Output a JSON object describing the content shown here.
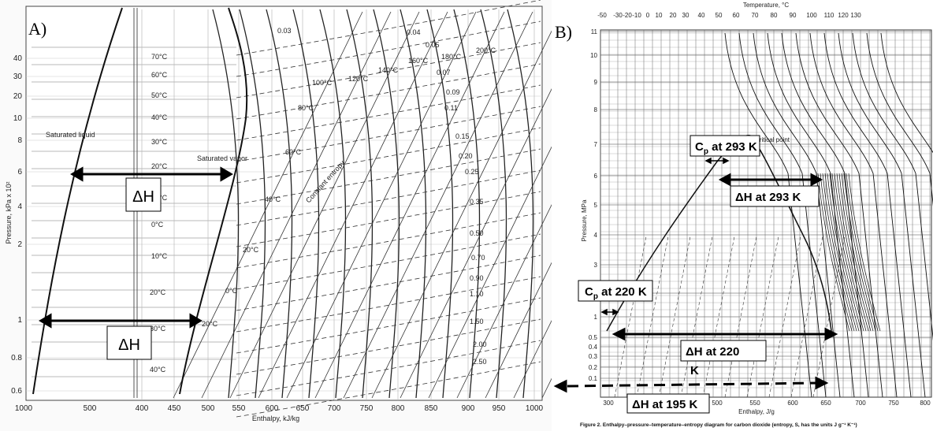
{
  "panelA": {
    "label": "A)",
    "xlabel": "Enthalpy, kJ/kg",
    "ylabel": "Pressure, kPa x 10²",
    "x_ticks": [
      "1000",
      "500",
      "400",
      "450",
      "500",
      "550",
      "600",
      "650",
      "700",
      "750",
      "800",
      "850",
      "900",
      "950",
      "1000"
    ],
    "y_ticks": [
      "40",
      "30",
      "20",
      "10",
      "8",
      "6",
      "4",
      "2",
      "1",
      "0.8",
      "0.6"
    ],
    "sat_liquid_label": "Saturated liquid",
    "sat_vapor_label": "Saturated vapor",
    "entropy_label": "Constant entropy",
    "liquid_temps": [
      "70°C",
      "60°C",
      "50°C",
      "40°C",
      "30°C",
      "20°C",
      "10°C",
      "0°C",
      "10°C",
      "20°C",
      "30°C",
      "40°C"
    ],
    "vapor_temps": [
      "200°C",
      "180°C",
      "160°C",
      "140°C",
      "120°C",
      "100°C",
      "80°C",
      "60°C",
      "40°C",
      "20°C",
      "0°C",
      "20°C"
    ],
    "density_labels": [
      "0.03",
      "0.04",
      "0.05",
      "0.07",
      "0.09",
      "0.11",
      "0.15",
      "0.20",
      "0.25",
      "0.35",
      "0.50",
      "0.70",
      "0.90",
      "1.10",
      "1.50",
      "2.00",
      "2.50"
    ],
    "annotation_upper": "ΔH",
    "annotation_lower": "ΔH"
  },
  "panelB": {
    "label": "B)",
    "top_axis_label": "Temperature, °C",
    "xlabel": "Enthalpy, J/g",
    "ylabel": "Pressure, MPa",
    "top_ticks_1": [
      "-50",
      "-30",
      "-20",
      "-10",
      "0",
      "10",
      "20",
      "30",
      "40",
      "50",
      "60",
      "70",
      "80",
      "90",
      "100",
      "110",
      "120",
      "130"
    ],
    "x_ticks": [
      "300",
      "500",
      "550",
      "600",
      "650",
      "700",
      "750",
      "800"
    ],
    "y_ticks": [
      "11",
      "10",
      "9",
      "8",
      "7",
      "6",
      "5",
      "4",
      "3",
      "2",
      "1",
      "0.5",
      "0.4",
      "0.3",
      "0.2",
      "0.1"
    ],
    "critical_label": "Critical point",
    "caption": "Figure 2. Enthalpy–pressure–temperature–entropy diagram for carbon dioxide (entropy, S, has the units J g⁻¹ K⁻¹)",
    "box_cp293": "C",
    "box_cp293_sub": "p",
    "box_cp293_rest": " at 293 K",
    "box_dh293": "ΔH at 293 K",
    "box_cp220": "C",
    "box_cp220_sub": "p",
    "box_cp220_rest": " at 220 K",
    "box_dh220_1": "ΔH at 220",
    "box_dh220_2": "K",
    "box_dh195": "ΔH at 195  K"
  }
}
